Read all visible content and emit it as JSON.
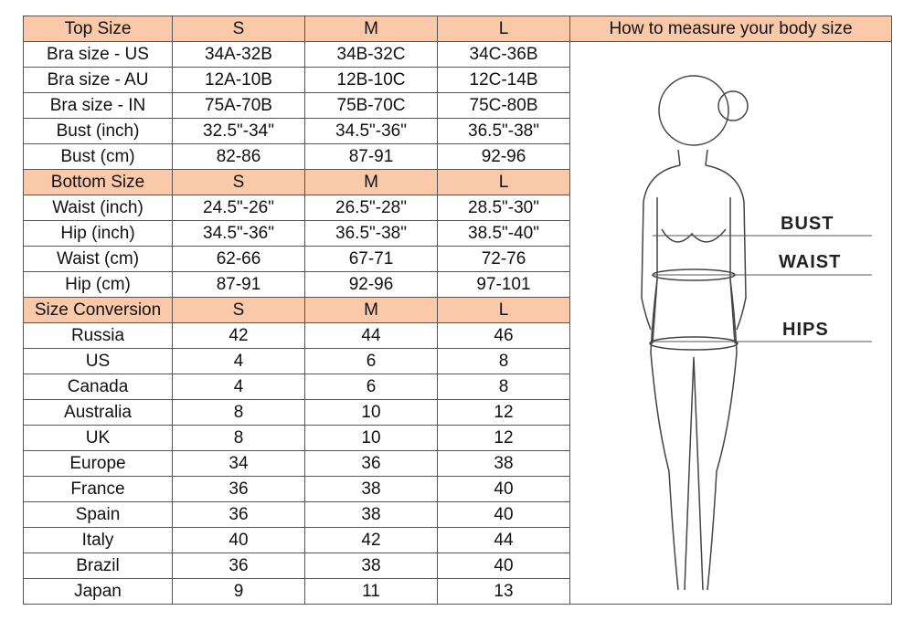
{
  "sizes": [
    "S",
    "M",
    "L"
  ],
  "measure_title": "How to measure your body size",
  "figure_labels": {
    "bust": "BUST",
    "waist": "WAIST",
    "hips": "HIPS"
  },
  "header_color": "#f9c9a9",
  "sections": [
    {
      "title": "Top Size",
      "rows": [
        [
          "Bra size - US",
          "34A-32B",
          "34B-32C",
          "34C-36B"
        ],
        [
          "Bra size - AU",
          "12A-10B",
          "12B-10C",
          "12C-14B"
        ],
        [
          "Bra size - IN",
          "75A-70B",
          "75B-70C",
          "75C-80B"
        ],
        [
          "Bust (inch)",
          "32.5\"-34\"",
          "34.5\"-36\"",
          "36.5\"-38\""
        ],
        [
          "Bust (cm)",
          "82-86",
          "87-91",
          "92-96"
        ]
      ]
    },
    {
      "title": "Bottom Size",
      "rows": [
        [
          "Waist (inch)",
          "24.5\"-26\"",
          "26.5\"-28\"",
          "28.5\"-30\""
        ],
        [
          "Hip (inch)",
          "34.5\"-36\"",
          "36.5\"-38\"",
          "38.5\"-40\""
        ],
        [
          "Waist (cm)",
          "62-66",
          "67-71",
          "72-76"
        ],
        [
          "Hip (cm)",
          "87-91",
          "92-96",
          "97-101"
        ]
      ]
    },
    {
      "title": "Size Conversion",
      "rows": [
        [
          "Russia",
          "42",
          "44",
          "46"
        ],
        [
          "US",
          "4",
          "6",
          "8"
        ],
        [
          "Canada",
          "4",
          "6",
          "8"
        ],
        [
          "Australia",
          "8",
          "10",
          "12"
        ],
        [
          "UK",
          "8",
          "10",
          "12"
        ],
        [
          "Europe",
          "34",
          "36",
          "38"
        ],
        [
          "France",
          "36",
          "38",
          "40"
        ],
        [
          "Spain",
          "36",
          "38",
          "40"
        ],
        [
          "Italy",
          "40",
          "42",
          "44"
        ],
        [
          "Brazil",
          "36",
          "38",
          "40"
        ],
        [
          "Japan",
          "9",
          "11",
          "13"
        ]
      ]
    }
  ]
}
